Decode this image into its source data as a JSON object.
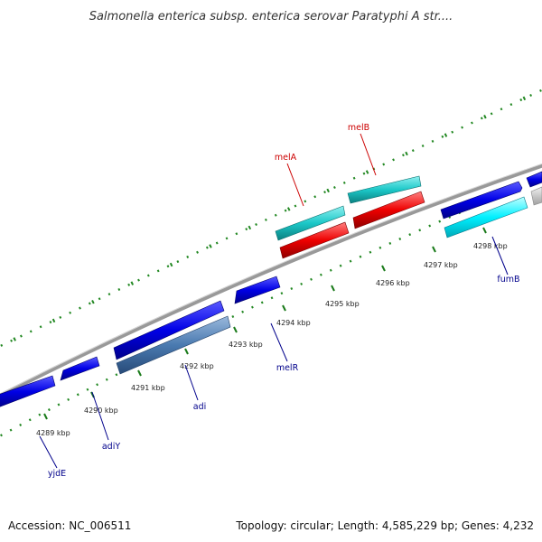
{
  "title": "Salmonella enterica subsp. enterica serovar Paratyphi A str....",
  "footer": {
    "accession": "Accession: NC_006511",
    "summary": "Topology: circular; Length: 4,585,229 bp; Genes: 4,232"
  },
  "scale_ticks": [
    {
      "label": "4289 kbp"
    },
    {
      "label": "4290 kbp"
    },
    {
      "label": "4291 kbp"
    },
    {
      "label": "4292 kbp"
    },
    {
      "label": "4293 kbp"
    },
    {
      "label": "4294 kbp"
    },
    {
      "label": "4295 kbp"
    },
    {
      "label": "4296 kbp"
    },
    {
      "label": "4297 kbp"
    },
    {
      "label": "4298 kbp"
    }
  ],
  "gene_labels": [
    {
      "name": "melA",
      "color": "#cc0000"
    },
    {
      "name": "melB",
      "color": "#cc0000"
    },
    {
      "name": "fumB",
      "color": "#00008b"
    },
    {
      "name": "melR",
      "color": "#00008b"
    },
    {
      "name": "adi",
      "color": "#00008b"
    },
    {
      "name": "adiY",
      "color": "#00008b"
    },
    {
      "name": "yjdE",
      "color": "#00008b"
    }
  ],
  "colors": {
    "forward_gene": "#0000dd",
    "reverse_gene": "#1010e0",
    "mel_operon_teal": "#1cc8c8",
    "mel_operon_red": "#ee0000",
    "adi_steelblue": "#4a7ab0",
    "fumB_cyan": "#00ffff",
    "grey_gene": "#c8c8c8",
    "backbone": "#888888",
    "dots": "#228822"
  }
}
